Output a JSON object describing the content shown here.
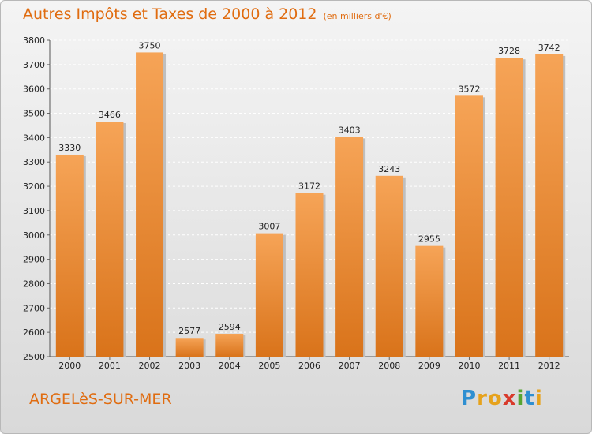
{
  "chart_data": {
    "type": "bar",
    "title": "Autres Impôts et Taxes de 2000 à 2012",
    "subtitle": "(en milliers d'€)",
    "categories": [
      "2000",
      "2001",
      "2002",
      "2003",
      "2004",
      "2005",
      "2006",
      "2007",
      "2008",
      "2009",
      "2010",
      "2011",
      "2012"
    ],
    "values": [
      3330,
      3466,
      3750,
      2577,
      2594,
      3007,
      3172,
      3403,
      3243,
      2955,
      3572,
      3728,
      3742
    ],
    "ylim": [
      2500,
      3800
    ],
    "yticks": [
      2500,
      2600,
      2700,
      2800,
      2900,
      3000,
      3100,
      3200,
      3300,
      3400,
      3500,
      3600,
      3700,
      3800
    ],
    "grid": true,
    "xlabel": "",
    "ylabel": "",
    "bar_color": "#f0913a"
  },
  "commune": "ARGELèS-SUR-MER",
  "logo": {
    "letters": [
      {
        "ch": "P",
        "color": "#2e8fd1"
      },
      {
        "ch": "r",
        "color": "#e6a21c"
      },
      {
        "ch": "o",
        "color": "#e6a21c"
      },
      {
        "ch": "x",
        "color": "#d83a2b"
      },
      {
        "ch": "i",
        "color": "#57a532"
      },
      {
        "ch": "t",
        "color": "#2e8fd1"
      },
      {
        "ch": "i",
        "color": "#e6a21c"
      }
    ]
  }
}
